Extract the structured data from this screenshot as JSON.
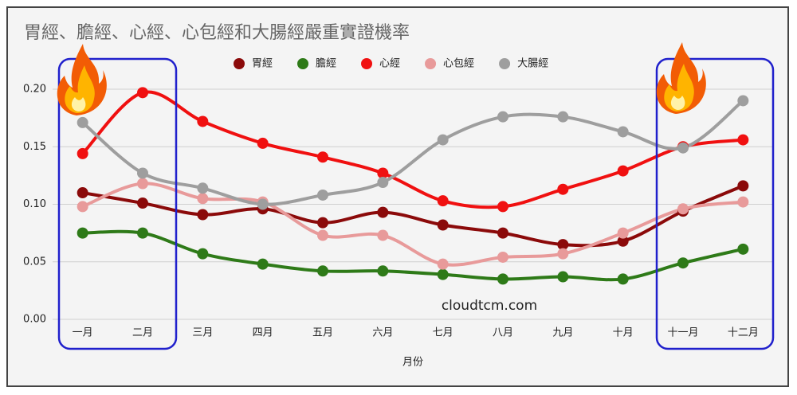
{
  "chart_data": {
    "type": "line",
    "title": "胃經、膽經、心經、心包經和大腸經嚴重實證機率",
    "x_label": "月份",
    "annotation": "cloudtcm.com",
    "categories": [
      "一月",
      "二月",
      "三月",
      "四月",
      "五月",
      "六月",
      "七月",
      "八月",
      "九月",
      "十月",
      "十一月",
      "十二月"
    ],
    "series": [
      {
        "name": "胃經",
        "color": "#8b0a0a",
        "values": [
          0.11,
          0.101,
          0.091,
          0.096,
          0.084,
          0.093,
          0.082,
          0.075,
          0.065,
          0.068,
          0.094,
          0.116
        ]
      },
      {
        "name": "膽經",
        "color": "#2e7a18",
        "values": [
          0.075,
          0.075,
          0.057,
          0.048,
          0.042,
          0.042,
          0.039,
          0.035,
          0.037,
          0.035,
          0.049,
          0.061
        ]
      },
      {
        "name": "心經",
        "color": "#f01010",
        "values": [
          0.144,
          0.197,
          0.172,
          0.153,
          0.141,
          0.127,
          0.103,
          0.098,
          0.113,
          0.129,
          0.15,
          0.156
        ]
      },
      {
        "name": "心包經",
        "color": "#e89a9a",
        "values": [
          0.098,
          0.118,
          0.105,
          0.102,
          0.073,
          0.073,
          0.048,
          0.054,
          0.057,
          0.075,
          0.096,
          0.102
        ]
      },
      {
        "name": "大腸經",
        "color": "#9e9e9e",
        "values": [
          0.171,
          0.127,
          0.114,
          0.1,
          0.108,
          0.119,
          0.156,
          0.176,
          0.176,
          0.163,
          0.149,
          0.19
        ]
      }
    ],
    "ylim": [
      0,
      0.2
    ],
    "yticks": [
      {
        "value": 0,
        "label": "0.00"
      },
      {
        "value": 0.05,
        "label": "0.05"
      },
      {
        "value": 0.1,
        "label": "0.10"
      },
      {
        "value": 0.15,
        "label": "0.15"
      },
      {
        "value": 0.2,
        "label": "0.20"
      }
    ],
    "grid": true,
    "legend": "top"
  }
}
